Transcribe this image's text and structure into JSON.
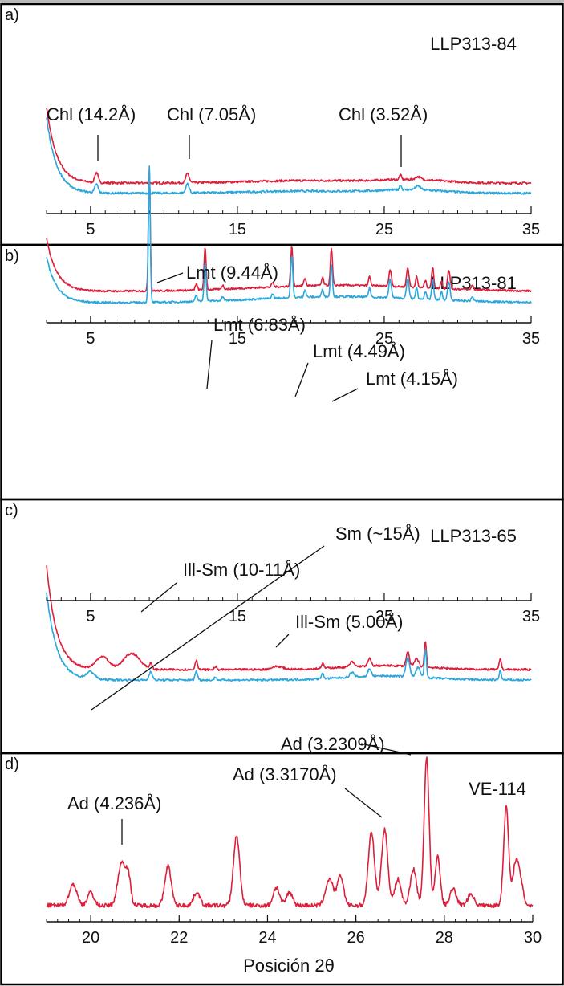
{
  "figure": {
    "colors": {
      "red": "#dc1f3b",
      "blue": "#2aa7dc",
      "ink": "#111111",
      "frame": "#000000"
    }
  },
  "chart_data": [
    {
      "type": "line",
      "panel": "a)",
      "sample": "LLP313-84",
      "xlim": [
        2,
        35
      ],
      "xticks": [
        5,
        15,
        25,
        35
      ],
      "series": [
        {
          "color": "red",
          "baseline": 1.8,
          "tail": 9,
          "peaks": [
            [
              5.4,
              1.2,
              0.16
            ],
            [
              11.6,
              1.1,
              0.16
            ],
            [
              26.1,
              0.55,
              0.1
            ],
            [
              27.3,
              0.35,
              0.25
            ]
          ],
          "humps": [
            [
              20,
              0.3,
              6
            ],
            [
              27,
              0.35,
              3
            ]
          ]
        },
        {
          "color": "blue",
          "baseline": 0.6,
          "tail": 9,
          "peaks": [
            [
              5.4,
              1.0,
              0.16
            ],
            [
              11.6,
              1.1,
              0.16
            ],
            [
              26.1,
              0.6,
              0.1
            ],
            [
              27.3,
              0.45,
              0.25
            ]
          ],
          "humps": [
            [
              20,
              0.25,
              6
            ],
            [
              27,
              0.35,
              3
            ]
          ]
        }
      ],
      "annotations": [
        {
          "text": "Chl (14.2Å)",
          "x": 5.4
        },
        {
          "text": "Chl (7.05Å)",
          "x": 11.6
        },
        {
          "text": "Chl (3.52Å)",
          "x": 26.1
        }
      ]
    },
    {
      "type": "line",
      "panel": "b)",
      "sample": "LLP313-81",
      "xlim": [
        2,
        35
      ],
      "xticks": [
        5,
        15,
        25,
        35
      ],
      "series": [
        {
          "color": "red",
          "baseline": 1.8,
          "tail": 7,
          "peaks": [
            [
              9.0,
              16,
              0.09
            ],
            [
              12.8,
              5.5,
              0.1
            ],
            [
              12.2,
              0.8,
              0.1
            ],
            [
              14.0,
              0.5,
              0.1
            ],
            [
              17.4,
              0.6,
              0.1
            ],
            [
              18.7,
              5.2,
              0.1
            ],
            [
              19.6,
              1.0,
              0.1
            ],
            [
              20.8,
              1.0,
              0.1
            ],
            [
              21.4,
              4.8,
              0.1
            ],
            [
              24.0,
              1.2,
              0.1
            ],
            [
              25.4,
              2.2,
              0.12
            ],
            [
              26.6,
              2.5,
              0.12
            ],
            [
              27.2,
              1.4,
              0.1
            ],
            [
              27.8,
              1.0,
              0.1
            ],
            [
              28.3,
              2.8,
              0.1
            ],
            [
              28.9,
              1.0,
              0.1
            ],
            [
              29.4,
              2.4,
              0.12
            ],
            [
              31.0,
              0.6,
              0.1
            ]
          ],
          "humps": [
            [
              22,
              0.8,
              8
            ]
          ]
        },
        {
          "color": "blue",
          "baseline": 0.3,
          "tail": 6,
          "peaks": [
            [
              9.0,
              18,
              0.09
            ],
            [
              12.8,
              5.0,
              0.1
            ],
            [
              12.2,
              0.8,
              0.1
            ],
            [
              14.0,
              0.5,
              0.1
            ],
            [
              17.4,
              0.6,
              0.1
            ],
            [
              18.7,
              5.6,
              0.1
            ],
            [
              19.6,
              1.0,
              0.1
            ],
            [
              20.8,
              1.0,
              0.1
            ],
            [
              21.4,
              4.2,
              0.1
            ],
            [
              24.0,
              1.2,
              0.1
            ],
            [
              25.4,
              2.4,
              0.12
            ],
            [
              26.6,
              2.6,
              0.12
            ],
            [
              27.2,
              1.4,
              0.1
            ],
            [
              27.8,
              1.0,
              0.1
            ],
            [
              28.3,
              2.6,
              0.1
            ],
            [
              28.9,
              1.0,
              0.1
            ],
            [
              29.4,
              2.4,
              0.12
            ],
            [
              31.0,
              0.6,
              0.1
            ]
          ],
          "humps": [
            [
              22,
              0.8,
              8
            ]
          ]
        }
      ],
      "annotations": [
        {
          "text": "Lmt (9.44Å)",
          "x": 9.0
        },
        {
          "text": "Lmt (6.83Å)",
          "x": 12.8
        },
        {
          "text": "Lmt (4.49Å)",
          "x": 18.7
        },
        {
          "text": "Lmt (4.15Å)",
          "x": 21.4
        }
      ]
    },
    {
      "type": "line",
      "panel": "c)",
      "sample": "LLP313-65",
      "xlim": [
        2,
        35
      ],
      "xticks": [
        5,
        15,
        25,
        35
      ],
      "series": [
        {
          "color": "red",
          "baseline": 1.6,
          "tail": 13,
          "peaks": [
            [
              5.8,
              1.6,
              0.6
            ],
            [
              7.8,
              2.0,
              0.8
            ],
            [
              9.1,
              0.7,
              0.12
            ],
            [
              12.2,
              1.2,
              0.12
            ],
            [
              13.5,
              0.4,
              0.1
            ],
            [
              17.7,
              0.4,
              0.5
            ],
            [
              20.8,
              0.6,
              0.12
            ],
            [
              22.8,
              0.6,
              0.2
            ],
            [
              24.0,
              0.9,
              0.15
            ],
            [
              26.6,
              1.8,
              0.15
            ],
            [
              27.2,
              1.0,
              0.2
            ],
            [
              27.8,
              3.2,
              0.1
            ],
            [
              32.9,
              1.4,
              0.1
            ]
          ],
          "humps": [
            [
              25,
              0.5,
              4
            ]
          ]
        },
        {
          "color": "blue",
          "baseline": 0.3,
          "tail": 11,
          "peaks": [
            [
              5.0,
              0.9,
              0.4
            ],
            [
              9.1,
              1.1,
              0.15
            ],
            [
              12.2,
              1.1,
              0.12
            ],
            [
              13.5,
              0.4,
              0.1
            ],
            [
              20.8,
              0.6,
              0.12
            ],
            [
              22.8,
              0.6,
              0.2
            ],
            [
              24.0,
              1.0,
              0.15
            ],
            [
              26.6,
              2.4,
              0.18
            ],
            [
              27.3,
              1.2,
              0.2
            ],
            [
              27.8,
              3.6,
              0.1
            ],
            [
              32.9,
              1.2,
              0.1
            ]
          ],
          "humps": [
            [
              25,
              0.5,
              4
            ]
          ]
        }
      ],
      "annotations": [
        {
          "text": "Sm (~15Å)",
          "x": 5.0
        },
        {
          "text": "Ill-Sm (10-11Å)",
          "x": 8.6
        },
        {
          "text": "Ill-Sm (5.00Å)",
          "x": 17.7
        }
      ]
    },
    {
      "type": "line",
      "panel": "d)",
      "sample": "VE-114",
      "xlabel": "Posición 2θ",
      "xlim": [
        19,
        30
      ],
      "xticks": [
        20,
        22,
        24,
        26,
        28,
        30
      ],
      "series": [
        {
          "color": "red",
          "baseline": 0.6,
          "tail": 0,
          "peaks": [
            [
              19.6,
              1.3,
              0.12
            ],
            [
              20.0,
              0.8,
              0.1
            ],
            [
              20.7,
              2.6,
              0.12
            ],
            [
              20.85,
              1.6,
              0.08
            ],
            [
              21.75,
              2.4,
              0.1
            ],
            [
              22.4,
              0.8,
              0.1
            ],
            [
              23.3,
              4.2,
              0.1
            ],
            [
              24.2,
              1.1,
              0.1
            ],
            [
              24.5,
              0.8,
              0.1
            ],
            [
              25.4,
              1.6,
              0.12
            ],
            [
              25.65,
              1.8,
              0.1
            ],
            [
              26.35,
              4.4,
              0.1
            ],
            [
              26.65,
              4.6,
              0.1
            ],
            [
              26.95,
              1.6,
              0.1
            ],
            [
              27.3,
              2.2,
              0.1
            ],
            [
              27.6,
              9.0,
              0.08
            ],
            [
              27.85,
              3.0,
              0.08
            ],
            [
              28.2,
              1.0,
              0.1
            ],
            [
              28.6,
              0.7,
              0.1
            ],
            [
              29.4,
              6.0,
              0.08
            ],
            [
              29.6,
              2.0,
              0.08
            ],
            [
              29.7,
              1.8,
              0.1
            ]
          ],
          "humps": []
        }
      ],
      "annotations": [
        {
          "text": "Ad (4.236Å)",
          "x": 20.75
        },
        {
          "text": "Ad (3.3170Å)",
          "x": 26.6
        },
        {
          "text": "Ad (3.2309Å)",
          "x": 27.6
        }
      ]
    }
  ]
}
